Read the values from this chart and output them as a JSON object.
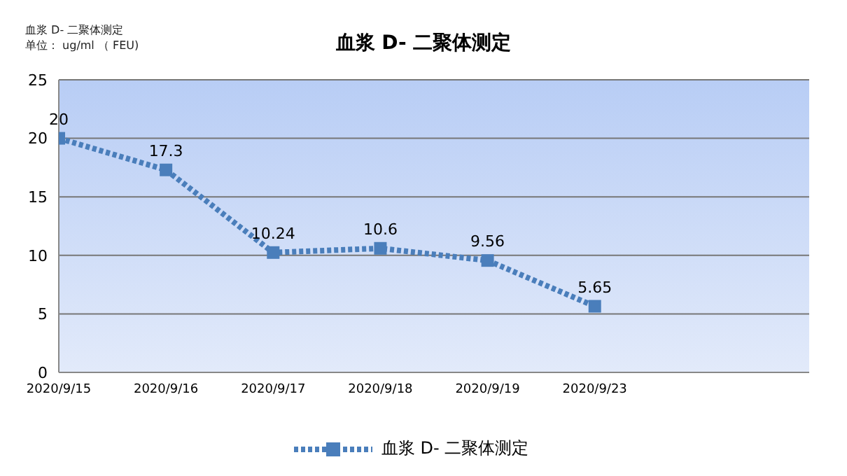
{
  "chart_data": {
    "type": "line",
    "title": "血浆 D- 二聚体测定",
    "ylabel": "血浆 D- 二聚体测定",
    "annotations": [
      "单位： ug/ml （ FEU)"
    ],
    "categories": [
      "2020/9/15",
      "2020/9/16",
      "2020/9/17",
      "2020/9/18",
      "2020/9/19",
      "2020/9/23",
      null,
      null
    ],
    "series": [
      {
        "name": "血浆 D- 二聚体测定",
        "color": "#4a7ebb",
        "values": [
          20,
          17.3,
          10.24,
          10.6,
          9.56,
          5.65,
          null,
          null
        ]
      }
    ],
    "ylim": [
      0,
      25
    ],
    "yticks": [
      0,
      5,
      10,
      15,
      20,
      25
    ],
    "grid": "y",
    "legend": "bottom",
    "marker": "square",
    "line_style": "dotted",
    "data_labels": true
  }
}
